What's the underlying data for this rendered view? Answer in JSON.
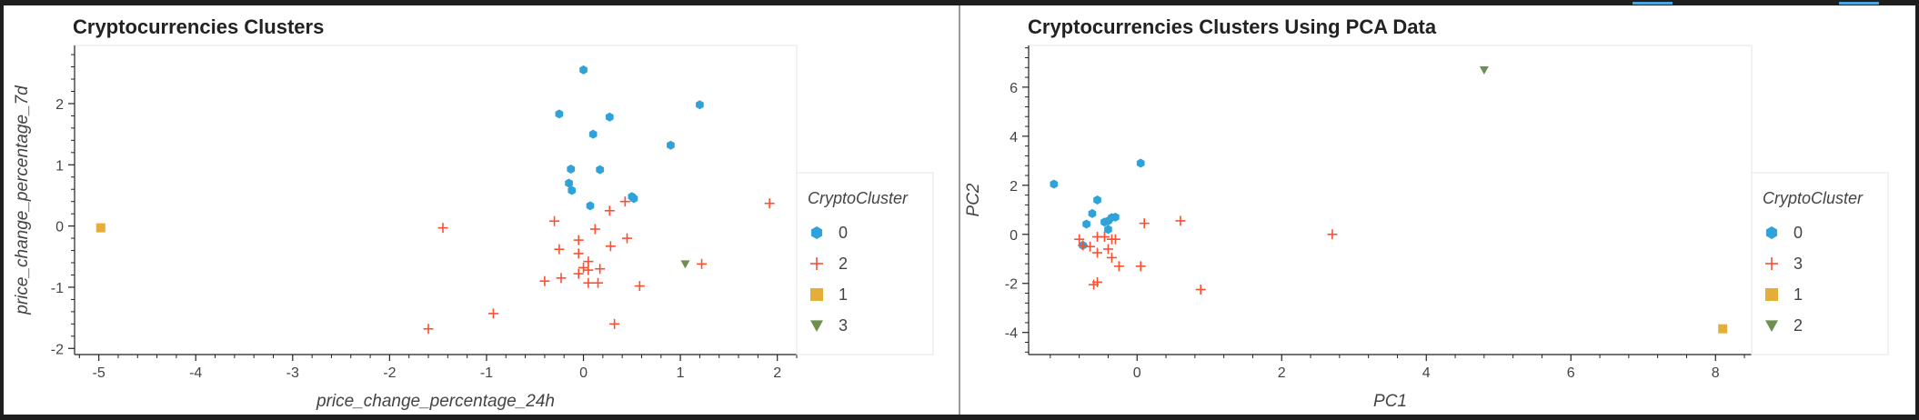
{
  "colors": {
    "cluster_blue": "#30a2da",
    "cluster_red": "#fc4f30",
    "cluster_yellow": "#e5ae38",
    "cluster_green": "#6d904f",
    "frame": "#1e1e1e",
    "accent_tab": "#4aa3df"
  },
  "chart_data": [
    {
      "type": "scatter",
      "title": "Cryptocurrencies Clusters",
      "xlabel": "price_change_percentage_24h",
      "ylabel": "price_change_percentage_7d",
      "xlim": [
        -5.25,
        2.2
      ],
      "ylim": [
        -2.1,
        2.95
      ],
      "xticks": [
        -5,
        -4,
        -3,
        -2,
        -1,
        0,
        1,
        2
      ],
      "yticks": [
        -2,
        -1,
        0,
        1,
        2
      ],
      "grid": false,
      "legend_title": "CryptoCluster",
      "legend_position": "right",
      "series": [
        {
          "name": "0",
          "marker": "hex",
          "color": "#30a2da",
          "points": [
            [
              0.0,
              2.55
            ],
            [
              -0.25,
              1.83
            ],
            [
              0.27,
              1.78
            ],
            [
              0.1,
              1.5
            ],
            [
              1.2,
              1.98
            ],
            [
              0.9,
              1.32
            ],
            [
              -0.13,
              0.93
            ],
            [
              0.17,
              0.92
            ],
            [
              -0.15,
              0.7
            ],
            [
              -0.12,
              0.58
            ],
            [
              0.07,
              0.33
            ],
            [
              0.5,
              0.48
            ],
            [
              0.52,
              0.45
            ]
          ]
        },
        {
          "name": "2",
          "marker": "plus",
          "color": "#fc4f30",
          "points": [
            [
              1.92,
              0.37
            ],
            [
              -1.45,
              -0.03
            ],
            [
              -0.3,
              0.08
            ],
            [
              0.12,
              -0.05
            ],
            [
              0.27,
              0.25
            ],
            [
              0.43,
              0.4
            ],
            [
              -0.05,
              -0.23
            ],
            [
              -0.25,
              -0.38
            ],
            [
              0.45,
              -0.2
            ],
            [
              0.28,
              -0.33
            ],
            [
              -0.05,
              -0.45
            ],
            [
              0.05,
              -0.58
            ],
            [
              0.0,
              -0.68
            ],
            [
              0.05,
              -0.72
            ],
            [
              0.17,
              -0.7
            ],
            [
              -0.05,
              -0.78
            ],
            [
              -0.4,
              -0.9
            ],
            [
              -0.23,
              -0.85
            ],
            [
              0.05,
              -0.93
            ],
            [
              0.15,
              -0.93
            ],
            [
              0.58,
              -0.98
            ],
            [
              1.22,
              -0.62
            ],
            [
              -0.93,
              -1.43
            ],
            [
              -1.6,
              -1.68
            ],
            [
              0.32,
              -1.6
            ]
          ]
        },
        {
          "name": "1",
          "marker": "square",
          "color": "#e5ae38",
          "points": [
            [
              -4.98,
              -0.03
            ]
          ]
        },
        {
          "name": "3",
          "marker": "triangle",
          "color": "#6d904f",
          "points": [
            [
              1.05,
              -0.62
            ]
          ]
        }
      ]
    },
    {
      "type": "scatter",
      "title": "Cryptocurrencies Clusters Using PCA Data",
      "xlabel": "PC1",
      "ylabel": "PC2",
      "xlim": [
        -1.5,
        8.5
      ],
      "ylim": [
        -4.9,
        7.7
      ],
      "xticks": [
        0,
        2,
        4,
        6,
        8
      ],
      "yticks": [
        -4,
        -2,
        0,
        2,
        4,
        6
      ],
      "grid": false,
      "legend_title": "CryptoCluster",
      "legend_position": "right",
      "series": [
        {
          "name": "0",
          "marker": "hex",
          "color": "#30a2da",
          "points": [
            [
              -1.15,
              2.05
            ],
            [
              0.05,
              2.9
            ],
            [
              -0.55,
              1.4
            ],
            [
              -0.62,
              0.85
            ],
            [
              -0.45,
              0.5
            ],
            [
              -0.4,
              0.55
            ],
            [
              -0.3,
              0.7
            ],
            [
              -0.35,
              0.68
            ],
            [
              -0.7,
              0.42
            ],
            [
              -0.4,
              0.2
            ],
            [
              -0.75,
              -0.45
            ]
          ]
        },
        {
          "name": "3",
          "marker": "plus",
          "color": "#fc4f30",
          "points": [
            [
              0.1,
              0.45
            ],
            [
              0.6,
              0.55
            ],
            [
              2.7,
              0.0
            ],
            [
              -0.8,
              -0.2
            ],
            [
              -0.55,
              -0.1
            ],
            [
              -0.45,
              -0.1
            ],
            [
              -0.35,
              -0.2
            ],
            [
              -0.3,
              -0.2
            ],
            [
              -0.75,
              -0.45
            ],
            [
              -0.65,
              -0.5
            ],
            [
              -0.55,
              -0.75
            ],
            [
              -0.4,
              -0.6
            ],
            [
              -0.35,
              -0.95
            ],
            [
              -0.25,
              -1.3
            ],
            [
              0.05,
              -1.3
            ],
            [
              -0.6,
              -2.05
            ],
            [
              -0.55,
              -1.95
            ],
            [
              0.88,
              -2.25
            ]
          ]
        },
        {
          "name": "1",
          "marker": "square",
          "color": "#e5ae38",
          "points": [
            [
              8.1,
              -3.85
            ]
          ]
        },
        {
          "name": "2",
          "marker": "triangle",
          "color": "#6d904f",
          "points": [
            [
              4.8,
              6.7
            ]
          ]
        }
      ]
    }
  ]
}
